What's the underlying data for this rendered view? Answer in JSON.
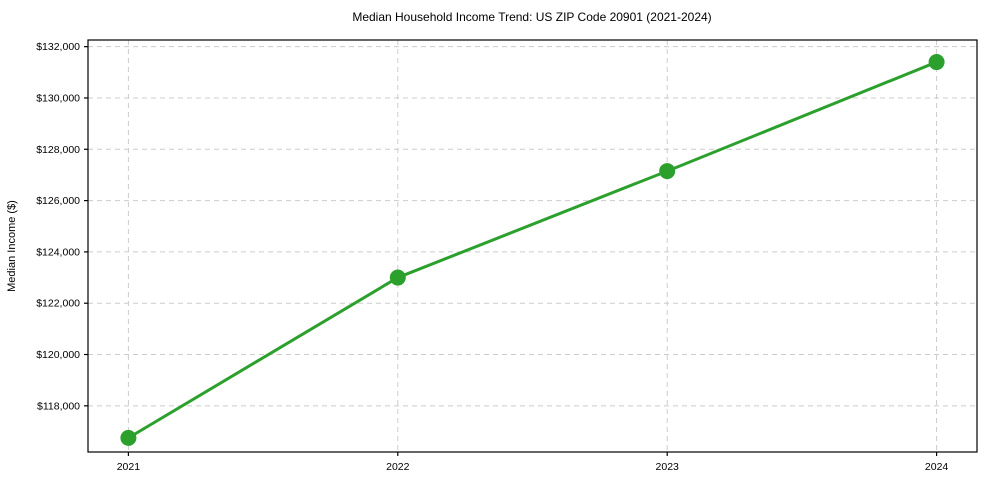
{
  "chart_data": {
    "type": "line",
    "title": "Median Household Income Trend: US ZIP Code 20901 (2021-2024)",
    "xlabel": "",
    "ylabel": "Median Income ($)",
    "x": [
      2021,
      2022,
      2023,
      2024
    ],
    "series": [
      {
        "name": "Median Household Income",
        "values": [
          116750,
          123000,
          127150,
          131400
        ]
      }
    ],
    "x_tick_labels": [
      "2021",
      "2022",
      "2023",
      "2024"
    ],
    "y_ticks": [
      118000,
      120000,
      122000,
      124000,
      126000,
      128000,
      130000,
      132000
    ],
    "y_tick_labels": [
      "$118,000",
      "$120,000",
      "$122,000",
      "$124,000",
      "$126,000",
      "$128,000",
      "$130,000",
      "$132,000"
    ],
    "xlim": [
      2020.85,
      2024.15
    ],
    "ylim": [
      116200,
      132260
    ],
    "grid": "both, dashed",
    "legend": "none",
    "line_color": "#2ca02c",
    "marker": "circle",
    "marker_size": 8,
    "grid_color": "#cccccc",
    "spine_color": "#000000",
    "background_color": "#ffffff"
  }
}
